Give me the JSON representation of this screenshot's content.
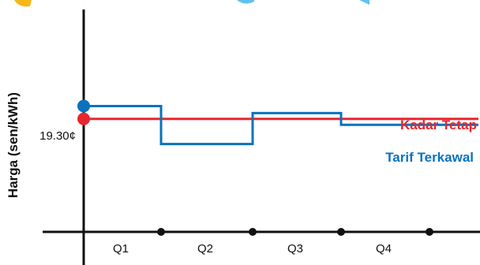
{
  "chart_data": {
    "type": "line",
    "title": "",
    "ylabel": "Harga (sen/kWh)",
    "xlabel": "",
    "categories": [
      "Q1",
      "Q2",
      "Q3",
      "Q4"
    ],
    "grid": false,
    "legend": "inline-right",
    "y_value_label": "19.30¢",
    "series": [
      {
        "name": "Kadar Tetap",
        "color": "#e8262e",
        "values": [
          19.3,
          19.3,
          19.3,
          19.3
        ]
      },
      {
        "name": "Tarif Terkawal",
        "color": "#0a72bf",
        "values": [
          21.5,
          15.0,
          20.3,
          18.3
        ]
      }
    ],
    "ylim": [
      0,
      38
    ]
  },
  "colors": {
    "kadar_tetap": "#e8262e",
    "tarif_terkawal": "#0a72bf",
    "axis": "#111111"
  }
}
